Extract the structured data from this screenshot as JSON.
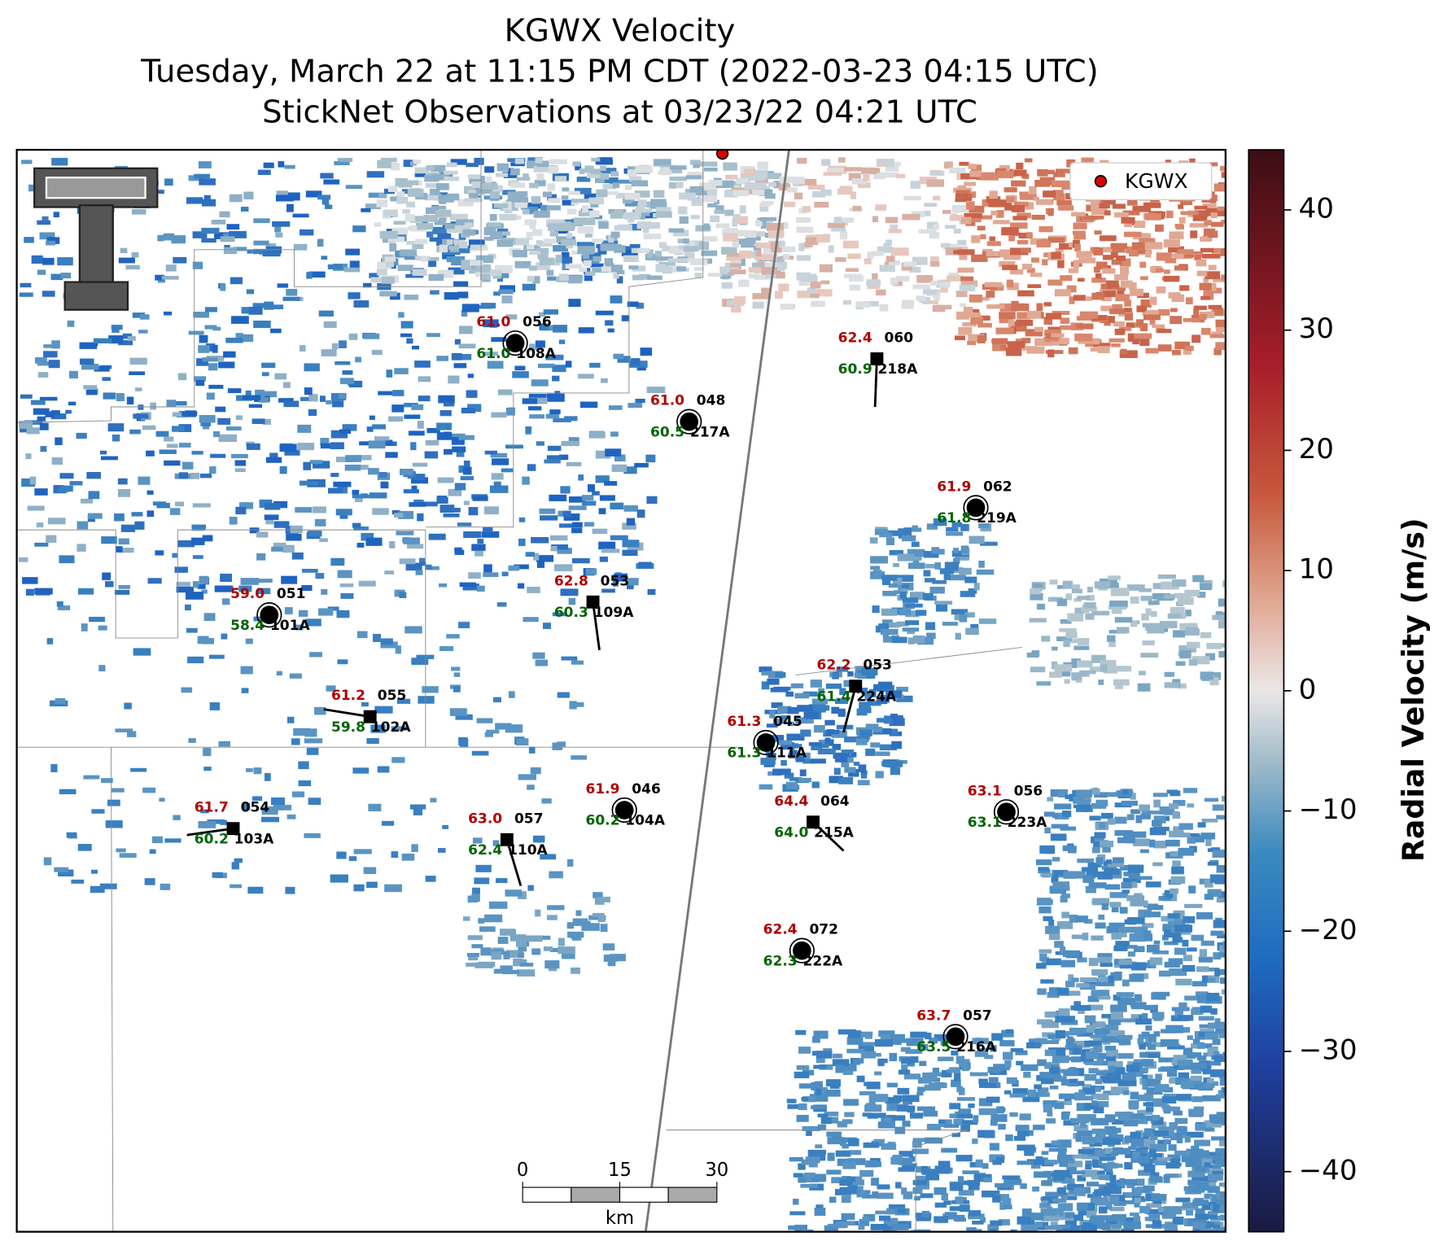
{
  "title": [
    "KGWX Velocity",
    "Tuesday, March 22 at 11:15 PM CDT (2022-03-23 04:15 UTC)",
    "StickNet Observations at 03/23/22 04:21 UTC"
  ],
  "legend": {
    "label": "KGWX",
    "color": "#e00000"
  },
  "colorbar": {
    "label": "Radial Velocity (m/s)",
    "lim": [
      -45,
      45
    ],
    "ticks": [
      {
        "value": -40,
        "label": "−40"
      },
      {
        "value": -30,
        "label": "−30"
      },
      {
        "value": -20,
        "label": "−20"
      },
      {
        "value": -10,
        "label": "−10"
      },
      0,
      10,
      20,
      30,
      40
    ]
  },
  "scale_bar": {
    "ticks": [
      0,
      15,
      30
    ],
    "unit": "km"
  },
  "stations": [
    {
      "id": "108A",
      "temperature": "61.0",
      "dewpoint": "61.0",
      "code": "056",
      "marker": "circle"
    },
    {
      "id": "217A",
      "temperature": "61.0",
      "dewpoint": "60.5",
      "code": "048",
      "marker": "circle"
    },
    {
      "id": "218A",
      "temperature": "62.4",
      "dewpoint": "60.9",
      "code": "060",
      "marker": "square"
    },
    {
      "id": "219A",
      "temperature": "61.9",
      "dewpoint": "61.8",
      "code": "062",
      "marker": "circle"
    },
    {
      "id": "101A",
      "temperature": "59.0",
      "dewpoint": "58.4",
      "code": "051",
      "marker": "circle"
    },
    {
      "id": "109A",
      "temperature": "62.8",
      "dewpoint": "60.3",
      "code": "053",
      "marker": "square"
    },
    {
      "id": "102A",
      "temperature": "61.2",
      "dewpoint": "59.8",
      "code": "055",
      "marker": "square"
    },
    {
      "id": "224A",
      "temperature": "62.2",
      "dewpoint": "61.4",
      "code": "053",
      "marker": "square"
    },
    {
      "id": "111A",
      "temperature": "61.3",
      "dewpoint": "61.3",
      "code": "045",
      "marker": "circle"
    },
    {
      "id": "103A",
      "temperature": "61.7",
      "dewpoint": "60.2",
      "code": "054",
      "marker": "square"
    },
    {
      "id": "104A",
      "temperature": "61.9",
      "dewpoint": "60.2",
      "code": "046",
      "marker": "circle"
    },
    {
      "id": "110A",
      "temperature": "63.0",
      "dewpoint": "62.4",
      "code": "057",
      "marker": "square"
    },
    {
      "id": "215A",
      "temperature": "64.4",
      "dewpoint": "64.0",
      "code": "064",
      "marker": "square"
    },
    {
      "id": "223A",
      "temperature": "63.1",
      "dewpoint": "63.1",
      "code": "056",
      "marker": "circle"
    },
    {
      "id": "222A",
      "temperature": "62.4",
      "dewpoint": "62.3",
      "code": "072",
      "marker": "circle"
    },
    {
      "id": "216A",
      "temperature": "63.7",
      "dewpoint": "63.5",
      "code": "057",
      "marker": "circle"
    }
  ]
}
